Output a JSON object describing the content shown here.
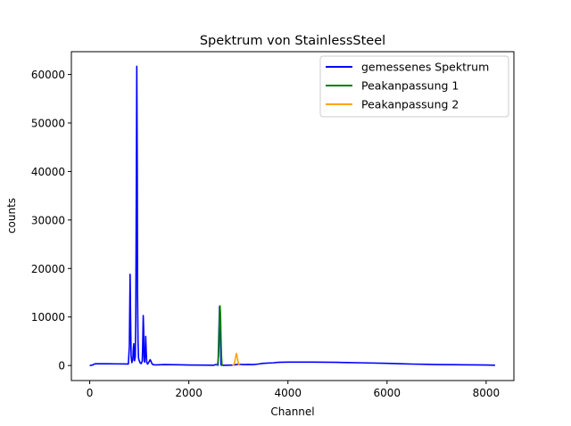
{
  "chart_data": {
    "type": "line",
    "title": "Spektrum von StainlessSteel",
    "xlabel": "Channel",
    "ylabel": "counts",
    "xlim": [
      -370,
      8560
    ],
    "ylim": [
      -3100,
      64700
    ],
    "xticks": [
      0,
      2000,
      4000,
      6000,
      8000
    ],
    "yticks": [
      0,
      10000,
      20000,
      30000,
      40000,
      50000,
      60000
    ],
    "xtick_labels": [
      "0",
      "2000",
      "4000",
      "6000",
      "8000"
    ],
    "ytick_labels": [
      "0",
      "10000",
      "20000",
      "30000",
      "40000",
      "50000",
      "60000"
    ],
    "grid": false,
    "legend_position": "upper right",
    "series": [
      {
        "name": "gemessenes Spektrum",
        "color": "#0000ff",
        "x": [
          0,
          60,
          90,
          120,
          400,
          780,
          800,
          815,
          825,
          835,
          850,
          870,
          880,
          890,
          900,
          905,
          920,
          930,
          940,
          950,
          960,
          965,
          975,
          985,
          1000,
          1020,
          1040,
          1060,
          1070,
          1080,
          1090,
          1095,
          1100,
          1110,
          1120,
          1130,
          1140,
          1150,
          1160,
          1170,
          1180,
          1200,
          1220,
          1240,
          1260,
          1280,
          1300,
          1350,
          1500,
          1800,
          2000,
          2300,
          2500,
          2550,
          2580,
          2590,
          2620,
          2650,
          2670,
          2700,
          2750,
          2850,
          2900,
          3000,
          3100,
          3200,
          3300,
          3400,
          3500,
          3700,
          3800,
          4000,
          4500,
          5000,
          5200,
          5500,
          6000,
          6300,
          6500,
          6800,
          7000,
          7500,
          8000,
          8180
        ],
        "y": [
          0,
          100,
          300,
          350,
          350,
          320,
          4000,
          18800,
          10000,
          2000,
          600,
          1200,
          3500,
          4500,
          1800,
          1000,
          1800,
          10000,
          35000,
          61700,
          40000,
          15000,
          5000,
          1500,
          1000,
          500,
          400,
          900,
          4500,
          10300,
          7000,
          2000,
          1000,
          700,
          2500,
          6000,
          3000,
          800,
          400,
          300,
          500,
          800,
          1200,
          800,
          300,
          200,
          150,
          120,
          200,
          150,
          100,
          80,
          60,
          200,
          100,
          80,
          12200,
          80,
          60,
          50,
          60,
          80,
          100,
          250,
          200,
          220,
          200,
          300,
          450,
          550,
          650,
          700,
          700,
          650,
          600,
          550,
          450,
          350,
          300,
          250,
          200,
          150,
          100,
          50
        ]
      },
      {
        "name": "Peakanpassung 1",
        "color": "#008000",
        "x": [
          2560,
          2580,
          2600,
          2610,
          2620,
          2630,
          2640,
          2650,
          2660,
          2670,
          2680
        ],
        "y": [
          0,
          200,
          1800,
          5500,
          10500,
          12300,
          10500,
          5500,
          1800,
          200,
          0
        ]
      },
      {
        "name": "Peakanpassung 2",
        "color": "#ffa500",
        "x": [
          2880,
          2910,
          2930,
          2945,
          2960,
          2975,
          2990,
          3010,
          3040
        ],
        "y": [
          0,
          200,
          900,
          1800,
          2500,
          1800,
          900,
          200,
          0
        ]
      }
    ]
  }
}
